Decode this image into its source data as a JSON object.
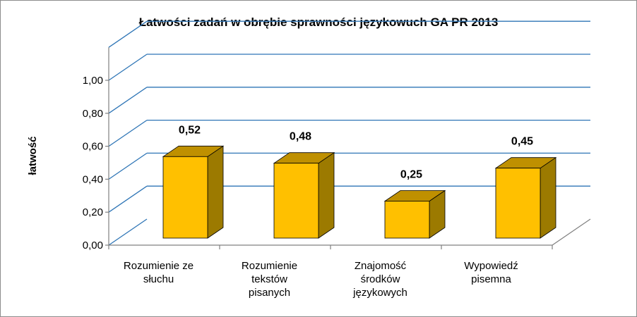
{
  "chart_data": {
    "type": "bar",
    "title": "Łatwości zadań w obrębie sprawności językowuch GA PR 2013",
    "ylabel": "łatwość",
    "xlabel": "",
    "categories": [
      [
        "Rozumienie ze",
        "słuchu"
      ],
      [
        "Rozumienie",
        "tekstów",
        "pisanych"
      ],
      [
        "Znajomość",
        "środków",
        "językowych"
      ],
      [
        "Wypowiedź",
        "pisemna"
      ]
    ],
    "values": [
      0.52,
      0.48,
      0.25,
      0.45
    ],
    "value_labels": [
      "0,52",
      "0,48",
      "0,25",
      "0,45"
    ],
    "ylim": [
      0,
      1.2
    ],
    "yticks": [
      0,
      0.2,
      0.4,
      0.6,
      0.8,
      1.0
    ],
    "ytick_labels": [
      "0,00",
      "0,20",
      "0,40",
      "0,60",
      "0,80",
      "1,00"
    ],
    "grid": true,
    "legend": "none",
    "style": "3d-column",
    "colors": {
      "bar_front": "#FFC000",
      "bar_top": "#BF9000",
      "bar_side": "#9C7A00",
      "gridline": "#2E75B6",
      "axis": "#808080",
      "border": "#8C8C8C"
    }
  }
}
